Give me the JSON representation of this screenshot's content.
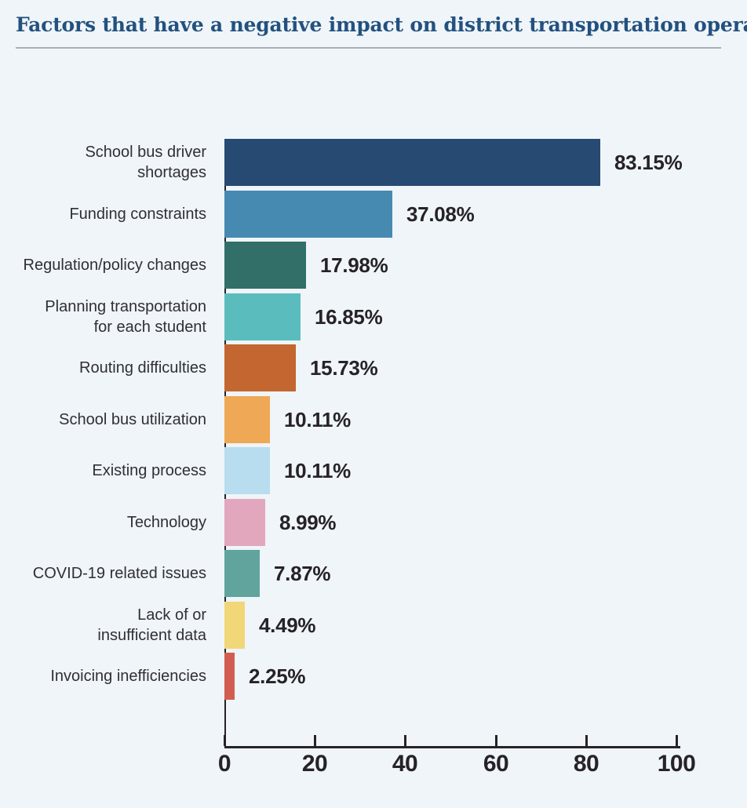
{
  "page": {
    "background_color": "#eff5f8",
    "title_color": "#235180",
    "divider_color": "#aab0b6"
  },
  "chart_data": {
    "type": "bar",
    "orientation": "horizontal",
    "title": "Factors that have a negative impact on district transportation operations",
    "categories": [
      "School bus driver\nshortages",
      "Funding constraints",
      "Regulation/policy changes",
      "Planning transportation\nfor each student",
      "Routing difficulties",
      "School bus utilization",
      "Existing process",
      "Technology",
      "COVID-19 related issues",
      "Lack of or\ninsufficient data",
      "Invoicing inefficiencies"
    ],
    "values": [
      83.15,
      37.08,
      17.98,
      16.85,
      15.73,
      10.11,
      10.11,
      8.99,
      7.87,
      4.49,
      2.25
    ],
    "value_labels": [
      "83.15%",
      "37.08%",
      "17.98%",
      "16.85%",
      "15.73%",
      "10.11%",
      "10.11%",
      "8.99%",
      "7.87%",
      "4.49%",
      "2.25%"
    ],
    "bar_colors": [
      "#274a72",
      "#4689b1",
      "#316f68",
      "#5bbcbe",
      "#c3662f",
      "#efa855",
      "#b8ddee",
      "#e2a7bc",
      "#60a49d",
      "#f2d779",
      "#d15e50"
    ],
    "xlabel": "",
    "ylabel": "",
    "xlim": [
      0,
      100
    ],
    "x_ticks": [
      0,
      20,
      40,
      60,
      80,
      100
    ],
    "grid": false,
    "legend": false,
    "axis_color": "#262228",
    "value_label_color": "#262228",
    "category_label_color": "#302f36"
  }
}
